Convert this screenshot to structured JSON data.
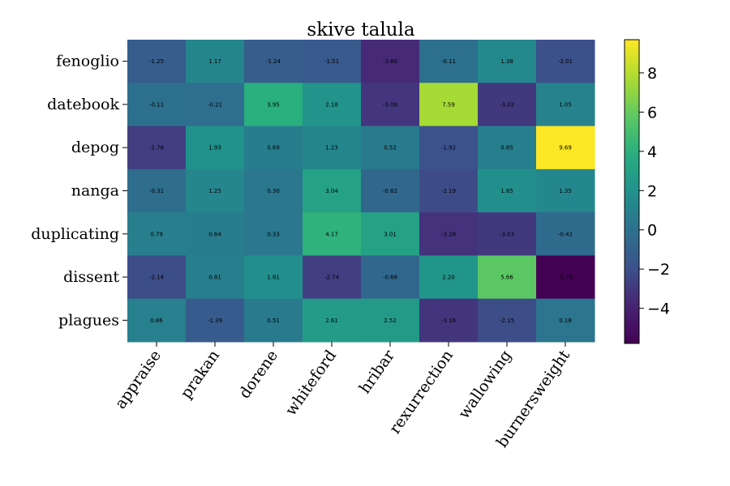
{
  "chart_data": {
    "type": "heatmap",
    "title": "skive talula",
    "rows": [
      "fenoglio",
      "datebook",
      "depog",
      "nanga",
      "duplicating",
      "dissent",
      "plagues"
    ],
    "columns": [
      "appraise",
      "prakan",
      "dorene",
      "whiteford",
      "hribar",
      "rexurrection",
      "wallowing",
      "burnersweight"
    ],
    "values": [
      [
        -1.25,
        1.17,
        -1.24,
        -1.51,
        -3.6,
        -0.11,
        1.38,
        -2.01
      ],
      [
        -0.11,
        -0.21,
        3.95,
        2.18,
        -3.08,
        7.59,
        -3.02,
        1.05
      ],
      [
        -2.76,
        1.93,
        0.69,
        1.23,
        0.52,
        -1.92,
        0.85,
        9.69
      ],
      [
        -0.31,
        1.25,
        0.3,
        3.04,
        -0.62,
        -2.19,
        1.85,
        1.35
      ],
      [
        0.79,
        0.64,
        0.33,
        4.17,
        3.01,
        -3.28,
        -3.03,
        -0.42
      ],
      [
        -2.14,
        0.81,
        1.81,
        -2.74,
        -0.68,
        2.2,
        5.66,
        -5.79
      ],
      [
        0.86,
        -1.39,
        0.51,
        2.61,
        2.52,
        -3.16,
        -2.15,
        0.18
      ]
    ],
    "cell_labels": [
      [
        "-1.25",
        "1.17",
        "-1.24",
        "-1.51",
        "-3.60",
        "-0.11",
        "1.38",
        "-2.01"
      ],
      [
        "-0.11",
        "-0.21",
        "3.95",
        "2.18",
        "-3.08",
        "7.59",
        "-3.02",
        "1.05"
      ],
      [
        "-2.76",
        "1.93",
        "0.69",
        "1.23",
        "0.52",
        "-1.92",
        "0.85",
        "9.69"
      ],
      [
        "-0.31",
        "1.25",
        "0.30",
        "3.04",
        "-0.62",
        "-2.19",
        "1.85",
        "1.35"
      ],
      [
        "0.79",
        "0.64",
        "0.33",
        "4.17",
        "3.01",
        "-3.28",
        "-3.03",
        "-0.42"
      ],
      [
        "-2.14",
        "0.81",
        "1.81",
        "-2.74",
        "-0.68",
        "2.20",
        "5.66",
        "-5.79"
      ],
      [
        "0.86",
        "-1.39",
        "0.51",
        "2.61",
        "2.52",
        "-3.16",
        "-2.15",
        "0.18"
      ]
    ],
    "colormap": "viridis",
    "vmin": -5.79,
    "vmax": 9.69,
    "colorbar": {
      "ticks": [
        -4,
        -2,
        0,
        2,
        4,
        6,
        8
      ],
      "tick_labels": [
        "−4",
        "−2",
        "0",
        "2",
        "4",
        "6",
        "8"
      ]
    },
    "xlabel": "",
    "ylabel": "",
    "grid": false,
    "xtick_rotation_deg": 55
  }
}
